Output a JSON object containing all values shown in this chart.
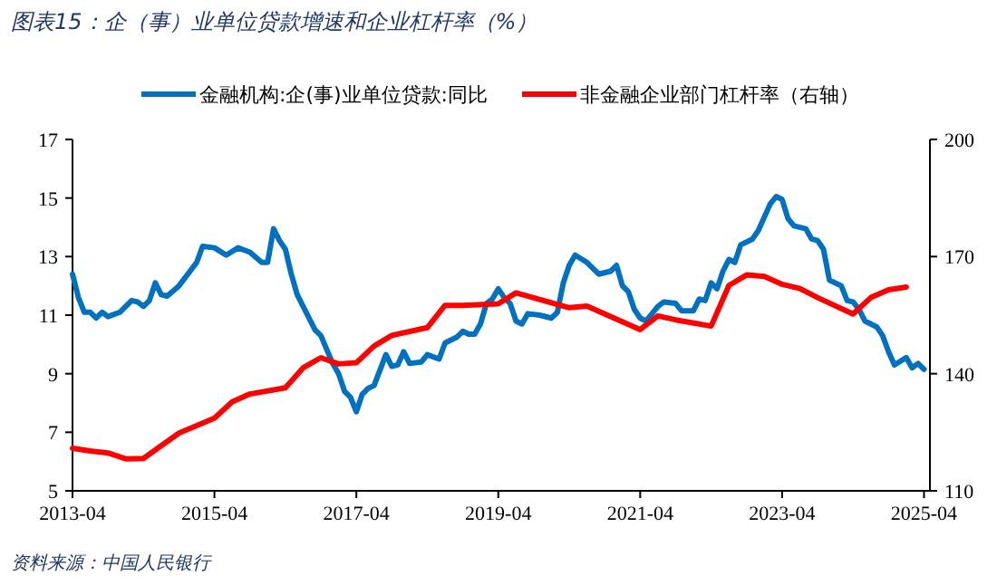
{
  "chart_data": {
    "type": "line",
    "title": "图表15：企（事）业单位贷款增速和企业杠杆率（%）",
    "annotations": [
      "资料来源：中国人民银行"
    ],
    "xlim": [
      "2013-04",
      "2025-05"
    ],
    "xticks": [
      "2013-04",
      "2015-04",
      "2017-04",
      "2019-04",
      "2021-04",
      "2023-04",
      "2025-04"
    ],
    "ylim": [
      5,
      17
    ],
    "yticks": [
      5,
      7,
      9,
      11,
      13,
      15,
      17
    ],
    "y2lim": [
      110,
      200
    ],
    "y2ticks": [
      110,
      140,
      170,
      200
    ],
    "legend": "top",
    "grid": false,
    "series": [
      {
        "name": "金融机构:企(事)业单位贷款:同比",
        "color": "#0070c0",
        "x": [
          "2013-04",
          "2013-05",
          "2013-06",
          "2013-07",
          "2013-08",
          "2013-09",
          "2013-10",
          "2013-12",
          "2014-02",
          "2014-03",
          "2014-04",
          "2014-05",
          "2014-06",
          "2014-07",
          "2014-08",
          "2014-10",
          "2015-01",
          "2015-02",
          "2015-04",
          "2015-06",
          "2015-08",
          "2015-10",
          "2015-12",
          "2016-01",
          "2016-02",
          "2016-03",
          "2016-04",
          "2016-05",
          "2016-06",
          "2016-08",
          "2016-09",
          "2016-10",
          "2016-12",
          "2017-01",
          "2017-02",
          "2017-03",
          "2017-04",
          "2017-05",
          "2017-06",
          "2017-07",
          "2017-09",
          "2017-10",
          "2017-11",
          "2017-12",
          "2018-01",
          "2018-03",
          "2018-04",
          "2018-06",
          "2018-07",
          "2018-09",
          "2018-10",
          "2018-11",
          "2018-12",
          "2019-01",
          "2019-02",
          "2019-03",
          "2019-04",
          "2019-05",
          "2019-06",
          "2019-07",
          "2019-08",
          "2019-09",
          "2019-11",
          "2020-01",
          "2020-02",
          "2020-03",
          "2020-04",
          "2020-05",
          "2020-07",
          "2020-09",
          "2020-11",
          "2020-12",
          "2021-01",
          "2021-02",
          "2021-03",
          "2021-04",
          "2021-05",
          "2021-07",
          "2021-08",
          "2021-10",
          "2021-11",
          "2022-01",
          "2022-02",
          "2022-03",
          "2022-04",
          "2022-05",
          "2022-06",
          "2022-07",
          "2022-08",
          "2022-09",
          "2022-11",
          "2022-12",
          "2023-02",
          "2023-03",
          "2023-04",
          "2023-05",
          "2023-06",
          "2023-08",
          "2023-09",
          "2023-10",
          "2023-11",
          "2023-12",
          "2024-02",
          "2024-03",
          "2024-04",
          "2024-05",
          "2024-06",
          "2024-08",
          "2024-09",
          "2024-10",
          "2024-11",
          "2025-01",
          "2025-02",
          "2025-03",
          "2025-04"
        ],
        "values": [
          12.4,
          11.6,
          11.1,
          11.1,
          10.9,
          11.1,
          10.95,
          11.1,
          11.5,
          11.45,
          11.3,
          11.5,
          12.1,
          11.7,
          11.65,
          12.0,
          12.8,
          13.35,
          13.3,
          13.05,
          13.3,
          13.15,
          12.8,
          12.8,
          13.95,
          13.55,
          13.25,
          12.4,
          11.7,
          10.9,
          10.5,
          10.3,
          9.35,
          9.0,
          8.4,
          8.2,
          7.7,
          8.3,
          8.5,
          8.6,
          9.65,
          9.25,
          9.3,
          9.75,
          9.35,
          9.4,
          9.65,
          9.5,
          10.05,
          10.25,
          10.45,
          10.35,
          10.35,
          10.7,
          11.4,
          11.55,
          11.9,
          11.6,
          11.4,
          10.8,
          10.7,
          11.05,
          11.0,
          10.9,
          11.1,
          12.1,
          12.7,
          13.05,
          12.8,
          12.4,
          12.5,
          12.7,
          12.0,
          11.8,
          11.2,
          10.9,
          10.8,
          11.3,
          11.45,
          11.4,
          11.15,
          11.15,
          11.55,
          11.5,
          12.1,
          11.9,
          12.5,
          12.9,
          12.8,
          13.4,
          13.6,
          13.9,
          14.8,
          15.05,
          14.95,
          14.3,
          14.05,
          13.95,
          13.6,
          13.55,
          13.25,
          12.2,
          12.0,
          11.5,
          11.45,
          11.2,
          10.8,
          10.6,
          10.3,
          9.75,
          9.3,
          9.55,
          9.2,
          9.35,
          9.15
        ]
      },
      {
        "name": "非金融企业部门杠杆率（右轴）",
        "color": "#ff0000",
        "axis": "y2",
        "x": [
          "2013-04",
          "2013-07",
          "2013-10",
          "2014-01",
          "2014-04",
          "2014-10",
          "2015-04",
          "2015-07",
          "2015-10",
          "2016-04",
          "2016-07",
          "2016-10",
          "2017-01",
          "2017-04",
          "2017-07",
          "2017-10",
          "2018-04",
          "2018-07",
          "2018-10",
          "2019-04",
          "2019-07",
          "2020-04",
          "2020-07",
          "2021-04",
          "2021-07",
          "2021-10",
          "2022-04",
          "2022-07",
          "2022-10",
          "2023-01",
          "2023-04",
          "2023-07",
          "2023-10",
          "2024-04",
          "2024-07",
          "2024-10",
          "2025-01"
        ],
        "values": [
          120.9,
          120.2,
          119.7,
          118.2,
          118.3,
          124.8,
          128.6,
          132.8,
          134.8,
          136.4,
          141.5,
          144.1,
          142.5,
          142.8,
          147.1,
          149.8,
          151.8,
          157.5,
          157.5,
          157.9,
          160.7,
          156.9,
          157.3,
          151.3,
          154.8,
          153.8,
          152.2,
          162.6,
          165.3,
          164.9,
          162.9,
          161.8,
          159.5,
          155.3,
          159.5,
          161.5,
          162.2
        ]
      }
    ]
  }
}
